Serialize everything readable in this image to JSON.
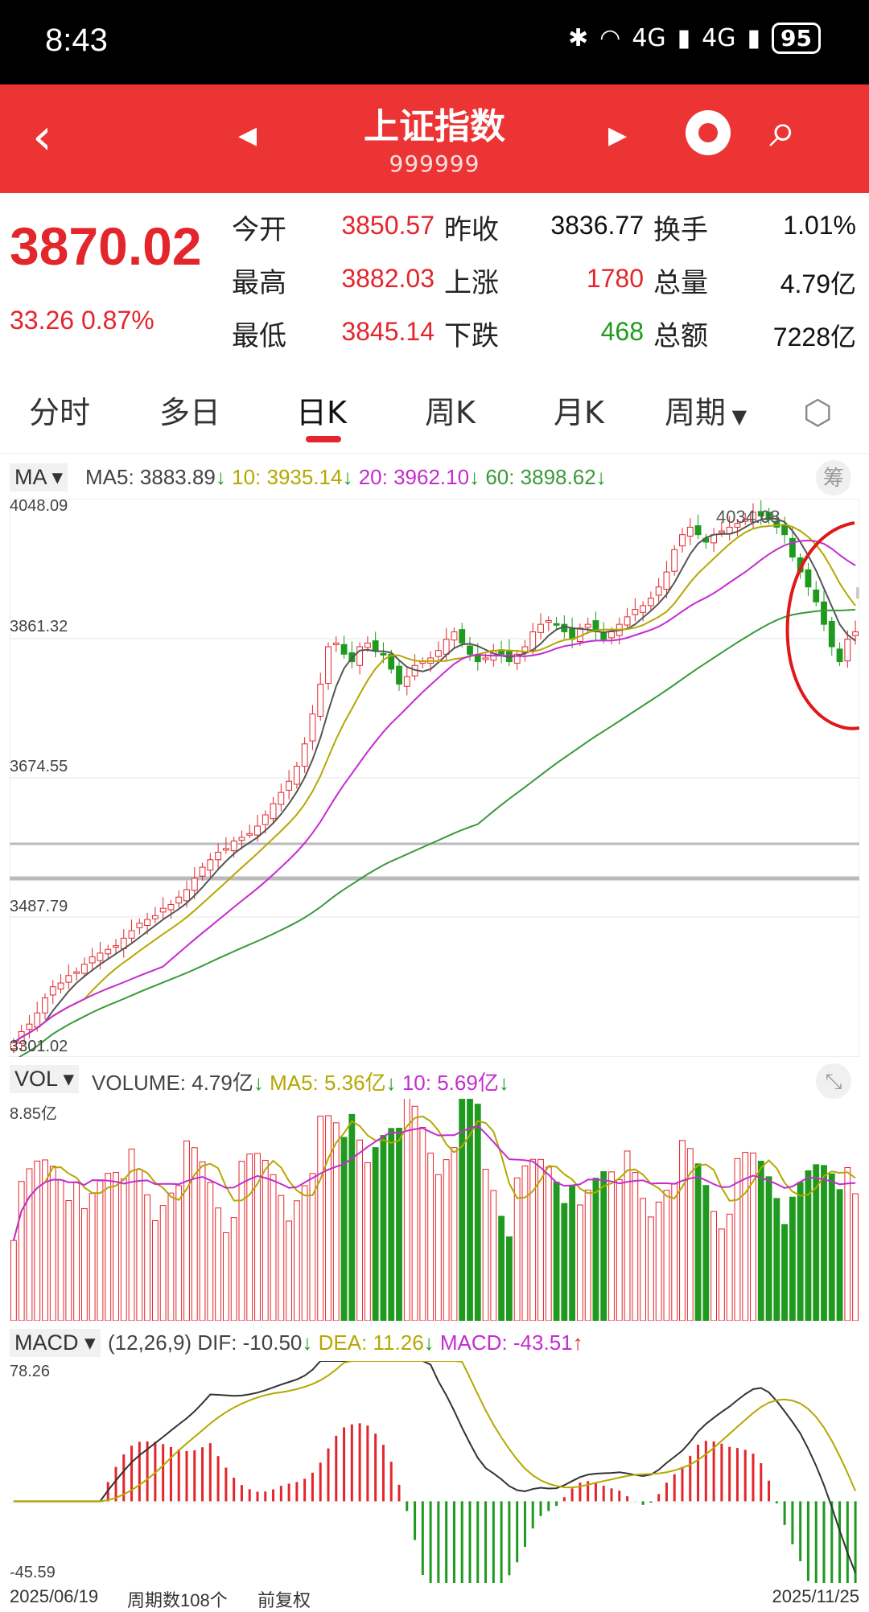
{
  "status": {
    "time": "8:43",
    "battery": "95",
    "network_a": "4G",
    "network_b": "4G",
    "bluetooth_icon": "bluetooth-icon",
    "wifi_icon": "wifi-icon"
  },
  "header": {
    "title": "上证指数",
    "code": "999999"
  },
  "quote": {
    "price": "3870.02",
    "change": "33.26",
    "change_pct": "0.87%",
    "open_label": "今开",
    "open": "3850.57",
    "prev_close_label": "昨收",
    "prev_close": "3836.77",
    "turnover_label": "换手",
    "turnover": "1.01%",
    "high_label": "最高",
    "high": "3882.03",
    "up_label": "上涨",
    "up": "1780",
    "volume_label": "总量",
    "volume": "4.79亿",
    "low_label": "最低",
    "low": "3845.14",
    "down_label": "下跌",
    "down": "468",
    "amount_label": "总额",
    "amount": "7228亿"
  },
  "tabs": [
    "分时",
    "多日",
    "日K",
    "周K",
    "月K",
    "周期"
  ],
  "ma_panel": {
    "name": "MA",
    "ma5": "MA5: 3883.89",
    "ma10": "10: 3935.14",
    "ma20": "20: 3962.10",
    "ma60": "60: 3898.62",
    "chip_label": "筹",
    "y_labels": [
      "4048.09",
      "3861.32",
      "3674.55",
      "3487.79",
      "3301.02"
    ],
    "peak_label": "4034.08"
  },
  "vol_panel": {
    "name": "VOL",
    "volume": "VOLUME: 4.79亿",
    "ma5": "MA5: 5.36亿",
    "ma10": "10: 5.69亿",
    "y_top": "8.85亿"
  },
  "macd_panel": {
    "name": "MACD",
    "params": "(12,26,9)",
    "dif": "DIF: -10.50",
    "dea": "DEA: 11.26",
    "macd": "MACD: -43.51",
    "y_top": "78.26",
    "y_bottom": "-45.59"
  },
  "footer": {
    "start_date": "2025/06/19",
    "period_count": "周期数108个",
    "adjust": "前复权",
    "end_date": "2025/11/25"
  },
  "chart_data": {
    "type": "candlestick",
    "bars": 108,
    "ylim": [
      3301.02,
      4048.09
    ],
    "close_series": [
      3320,
      3335,
      3345,
      3360,
      3380,
      3395,
      3400,
      3410,
      3415,
      3425,
      3435,
      3440,
      3445,
      3450,
      3460,
      3470,
      3480,
      3485,
      3490,
      3500,
      3505,
      3515,
      3525,
      3540,
      3555,
      3565,
      3575,
      3580,
      3590,
      3595,
      3600,
      3610,
      3625,
      3640,
      3655,
      3670,
      3690,
      3720,
      3760,
      3800,
      3850,
      3855,
      3840,
      3830,
      3850,
      3855,
      3845,
      3840,
      3820,
      3800,
      3810,
      3825,
      3830,
      3835,
      3845,
      3860,
      3870,
      3855,
      3840,
      3830,
      3835,
      3845,
      3840,
      3830,
      3840,
      3850,
      3870,
      3880,
      3885,
      3880,
      3870,
      3860,
      3875,
      3880,
      3870,
      3860,
      3870,
      3880,
      3890,
      3900,
      3905,
      3915,
      3930,
      3950,
      3980,
      4000,
      4010,
      4000,
      3990,
      4000,
      4005,
      4010,
      4015,
      4020,
      4030,
      4025,
      4020,
      4010,
      4000,
      3970,
      3950,
      3930,
      3910,
      3880,
      3850,
      3830,
      3860,
      3870
    ],
    "ma60_series_note": "smooth rising moving average",
    "volume_max": 8.85,
    "macd_range": [
      -45.59,
      78.26
    ]
  }
}
